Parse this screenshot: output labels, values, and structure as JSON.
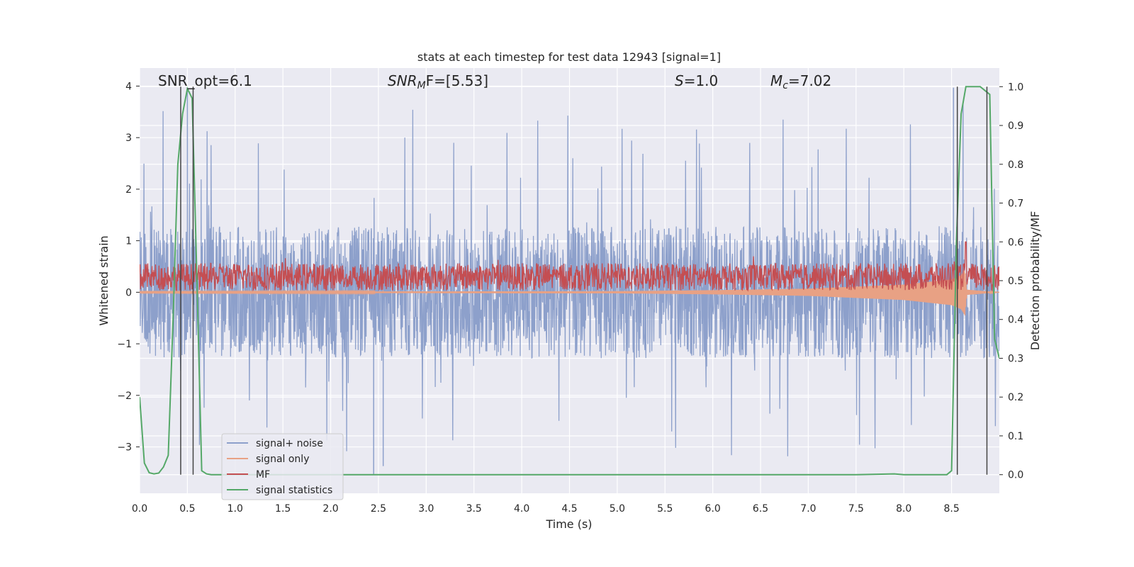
{
  "chart_data": {
    "type": "line",
    "title": "stats at each timestep for test data 12943 [signal=1]",
    "xlabel": "Time (s)",
    "ylabel": "Whitened strain",
    "y2label": "Detection probability/MF",
    "xlim": [
      0.0,
      9.0
    ],
    "ylim": [
      -3.9,
      4.35
    ],
    "y2lim": [
      -0.048,
      1.048
    ],
    "x_ticks": [
      "0.0",
      "0.5",
      "1.0",
      "1.5",
      "2.0",
      "2.5",
      "3.0",
      "3.5",
      "4.0",
      "4.5",
      "5.0",
      "5.5",
      "6.0",
      "6.5",
      "7.0",
      "7.5",
      "8.0",
      "8.5"
    ],
    "y_ticks": [
      "4",
      "3",
      "2",
      "1",
      "0",
      "−1",
      "−2",
      "−3"
    ],
    "y2_ticks": [
      "1.0",
      "0.9",
      "0.8",
      "0.7",
      "0.6",
      "0.5",
      "0.4",
      "0.3",
      "0.2",
      "0.1",
      "0.0"
    ],
    "grid": true,
    "legend_position": "lower-left",
    "annotations": {
      "snr_opt": "SNR_opt=6.1",
      "snr_mf_base": "SNR",
      "snr_mf_sub": "M",
      "snr_mf_suffix": "F=[5.53]",
      "s_base": "S",
      "s_value": "=1.0",
      "mc_base": "M",
      "mc_sub": "c",
      "mc_value": "=7.02"
    },
    "vlines_x": [
      0.43,
      0.56,
      8.56,
      8.87
    ],
    "series": [
      {
        "name": "signal+ noise",
        "color": "#8da0cb",
        "axis": "left",
        "envelope": {
          "typical_range": [
            -1.3,
            1.35
          ],
          "peak_max": 3.97,
          "peak_min": -3.55
        }
      },
      {
        "name": "signal only",
        "color": "#e8a184",
        "axis": "left",
        "x": [
          0.0,
          5.0,
          6.0,
          7.0,
          8.0,
          8.5,
          8.6,
          8.64,
          8.66,
          9.0
        ],
        "amplitude": [
          0.01,
          0.02,
          0.04,
          0.07,
          0.15,
          0.25,
          0.33,
          0.45,
          0.05,
          0.0
        ]
      },
      {
        "name": "MF",
        "color": "#c44e52",
        "axis": "right",
        "baseline": 0.5,
        "typical_range": [
          0.475,
          0.545
        ],
        "peak": [
          8.65,
          0.6
        ]
      },
      {
        "name": "signal statistics",
        "color": "#55a868",
        "axis": "right",
        "x": [
          0.0,
          0.05,
          0.1,
          0.15,
          0.2,
          0.25,
          0.3,
          0.35,
          0.4,
          0.45,
          0.5,
          0.55,
          0.6,
          0.65,
          0.7,
          0.75,
          0.8,
          1.0,
          2.0,
          3.0,
          4.0,
          5.0,
          6.0,
          7.0,
          7.5,
          7.9,
          8.0,
          8.3,
          8.45,
          8.5,
          8.55,
          8.6,
          8.65,
          8.7,
          8.8,
          8.85,
          8.9,
          8.95,
          9.0
        ],
        "y": [
          0.2,
          0.03,
          0.005,
          0.002,
          0.004,
          0.02,
          0.05,
          0.4,
          0.8,
          0.93,
          0.995,
          0.97,
          0.5,
          0.01,
          0.002,
          0.0,
          0.0,
          0.0,
          0.0,
          0.0,
          0.0,
          0.0,
          0.0,
          0.0,
          0.0,
          0.002,
          0.0,
          0.0,
          0.0,
          0.01,
          0.6,
          0.93,
          1.0,
          1.0,
          1.0,
          0.99,
          0.98,
          0.35,
          0.3
        ]
      }
    ]
  }
}
